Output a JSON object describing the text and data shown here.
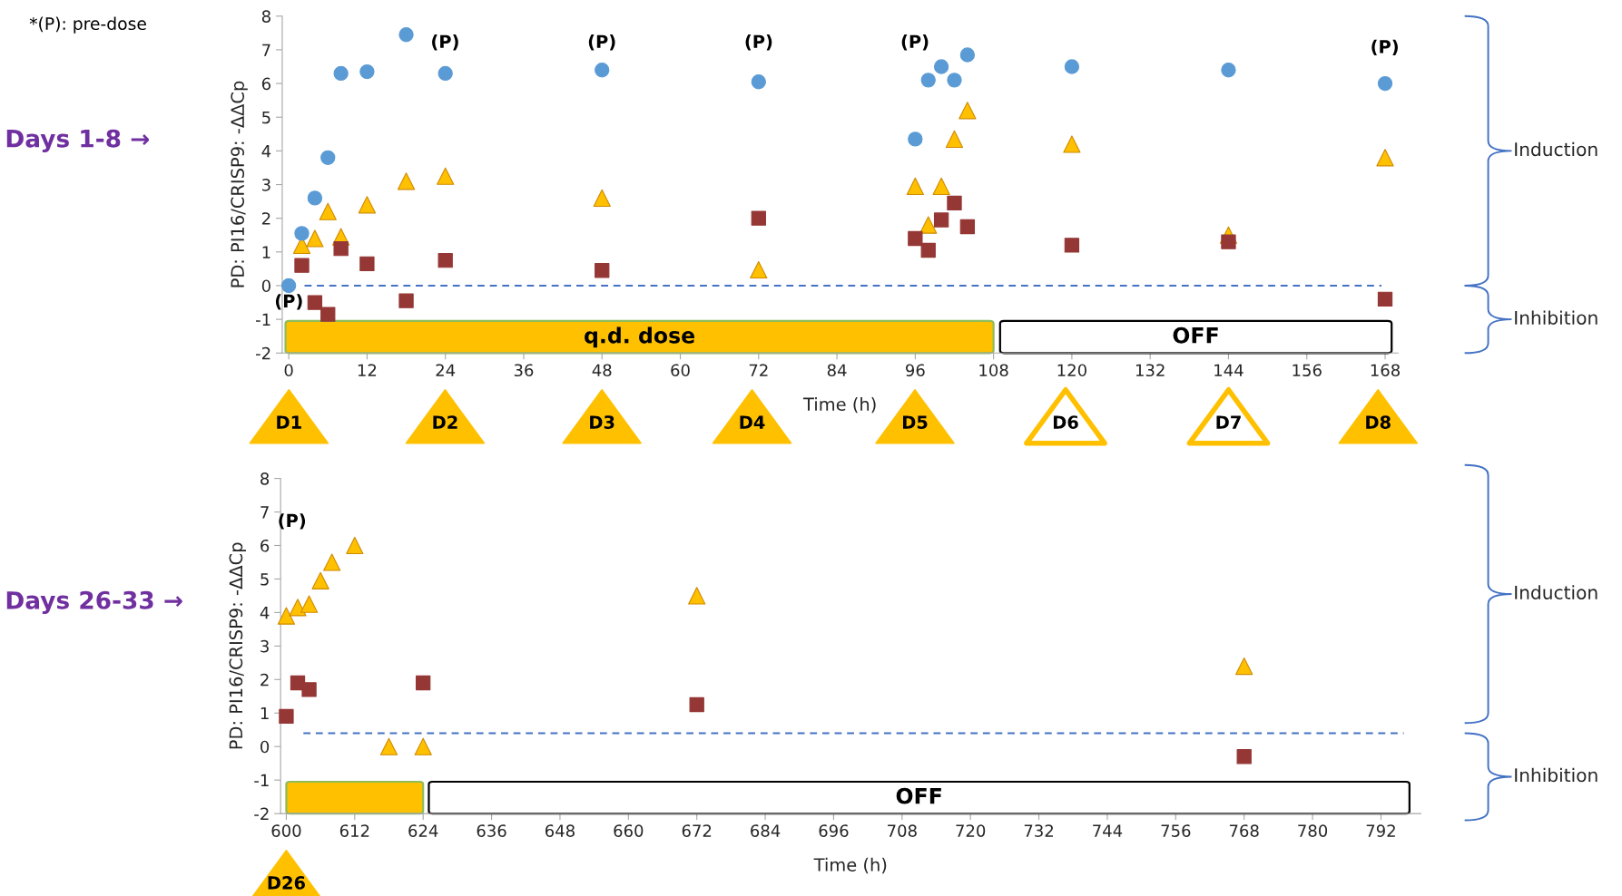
{
  "chart_data": [
    {
      "type": "scatter",
      "title": "Days 1-8 →",
      "xlabel": "Time (h)",
      "ylabel": "PD: PI16/CRISP9: -ΔΔCp",
      "xlim": [
        -1,
        170
      ],
      "xticks": [
        0,
        12,
        24,
        36,
        48,
        60,
        72,
        84,
        96,
        108,
        120,
        132,
        144,
        156,
        168
      ],
      "ylim": [
        -2,
        8
      ],
      "yticks": [
        -2,
        -1,
        0,
        1,
        2,
        3,
        4,
        5,
        6,
        7,
        8
      ],
      "grid": false,
      "legend": false,
      "series": [
        {
          "color": "#5b9bd5",
          "marker": "circle",
          "x": [
            0,
            2,
            4,
            6,
            8,
            12,
            18,
            24,
            48,
            72,
            96,
            98,
            100,
            102,
            104,
            120,
            144,
            168
          ],
          "values": [
            0,
            1.55,
            2.6,
            3.8,
            6.3,
            6.35,
            7.45,
            6.3,
            6.4,
            6.05,
            4.35,
            6.1,
            6.5,
            6.1,
            6.85,
            6.5,
            6.4,
            6.0
          ]
        },
        {
          "color": "#ffc000",
          "marker": "triangle",
          "x": [
            2,
            4,
            6,
            8,
            12,
            18,
            24,
            48,
            72,
            96,
            98,
            100,
            102,
            104,
            120,
            144,
            168
          ],
          "values": [
            1.2,
            1.4,
            2.2,
            1.45,
            2.4,
            3.1,
            3.25,
            2.6,
            0.47,
            2.95,
            1.8,
            2.95,
            4.35,
            5.2,
            4.2,
            1.5,
            3.8
          ]
        },
        {
          "color": "#953735",
          "marker": "square",
          "x": [
            2,
            4,
            6,
            8,
            12,
            18,
            24,
            48,
            72,
            96,
            98,
            100,
            102,
            104,
            120,
            144,
            168
          ],
          "values": [
            0.6,
            -0.5,
            -0.85,
            1.1,
            0.65,
            -0.45,
            0.75,
            0.45,
            2.0,
            1.4,
            1.05,
            1.95,
            2.45,
            1.75,
            1.2,
            1.3,
            -0.4
          ]
        }
      ],
      "ref_lines": [
        {
          "axis": "y",
          "value": 0,
          "color": "#4472c4",
          "line_style": "dashed"
        }
      ],
      "bands": [
        {
          "axis": "x",
          "from": -0.5,
          "to": 108,
          "label": "q.d. dose",
          "color": "#ffc000"
        },
        {
          "axis": "x",
          "from": 109,
          "to": 169,
          "label": "OFF",
          "color": "#ffffff"
        }
      ],
      "annotations": [
        "*(P): pre-dose",
        "(P)",
        "(P)",
        "(P)",
        "(P)",
        "(P)",
        "(P)",
        "D1",
        "D2",
        "D3",
        "D4",
        "D5",
        "D6",
        "D7",
        "D8",
        "Induction",
        "Inhibition"
      ]
    },
    {
      "type": "scatter",
      "title": "Days 26-33 →",
      "xlabel": "Time (h)",
      "ylabel": "PD: PI16/CRISP9: -ΔΔCp",
      "xlim": [
        599,
        799
      ],
      "xticks": [
        600,
        612,
        624,
        636,
        648,
        660,
        672,
        684,
        696,
        708,
        720,
        732,
        744,
        756,
        768,
        780,
        792
      ],
      "ylim": [
        -2,
        8
      ],
      "yticks": [
        -2,
        -1,
        0,
        1,
        2,
        3,
        4,
        5,
        6,
        7,
        8
      ],
      "grid": false,
      "legend": false,
      "series": [
        {
          "color": "#ffc000",
          "marker": "triangle",
          "x": [
            600,
            602,
            604,
            606,
            608,
            612,
            618,
            624,
            672,
            768
          ],
          "values": [
            3.9,
            4.15,
            4.25,
            4.95,
            5.5,
            6.0,
            0,
            0,
            4.5,
            2.4
          ]
        },
        {
          "color": "#953735",
          "marker": "square",
          "x": [
            600,
            602,
            604,
            624,
            672,
            768
          ],
          "values": [
            0.9,
            1.9,
            1.7,
            1.9,
            1.25,
            -0.3
          ]
        }
      ],
      "ref_lines": [
        {
          "axis": "y",
          "value": 0.4,
          "color": "#4472c4",
          "line_style": "dashed"
        }
      ],
      "bands": [
        {
          "axis": "x",
          "from": 600,
          "to": 624,
          "label": null,
          "color": "#ffc000"
        },
        {
          "axis": "x",
          "from": 625,
          "to": 797,
          "label": "OFF",
          "color": "#ffffff"
        }
      ],
      "annotations": [
        "(P)",
        "D26",
        "Induction",
        "Inhibition"
      ]
    }
  ]
}
